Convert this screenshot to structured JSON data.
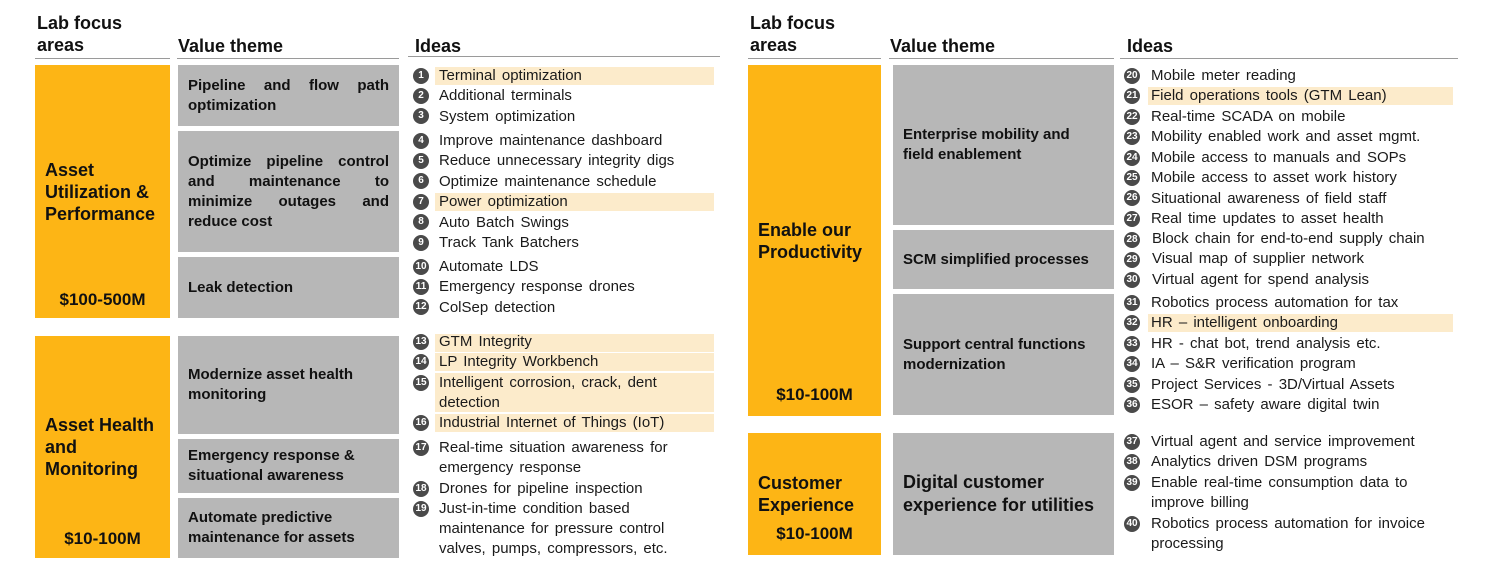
{
  "colors": {
    "focus": "#FDB515",
    "theme": "#B7B7B7",
    "highlight": "#FCEBCB",
    "number_circle": "#4a4a4a"
  },
  "headers": {
    "left": {
      "focus": "Lab focus areas",
      "theme": "Value theme",
      "ideas": "Ideas"
    },
    "right": {
      "focus": "Lab focus areas",
      "theme": "Value theme",
      "ideas": "Ideas"
    }
  },
  "focus_areas": [
    {
      "title": "Asset Utilization & Performance",
      "amount": "$100-500M"
    },
    {
      "title": "Asset Health and Monitoring",
      "amount": "$10-100M"
    },
    {
      "title": "Enable our Productivity",
      "amount": "$10-100M"
    },
    {
      "title": "Customer Experience",
      "amount": "$10-100M"
    }
  ],
  "themes": [
    "Pipeline and flow path optimization",
    "Optimize pipeline control and maintenance to minimize outages and reduce cost",
    "Leak detection",
    "Modernize asset health monitoring",
    "Emergency response & situational awareness",
    "Automate predictive maintenance for assets",
    "Enterprise mobility and field enablement",
    "SCM simplified processes",
    "Support central functions modernization",
    "Digital customer experience for utilities"
  ],
  "ideas": [
    {
      "num": "1",
      "text": "Terminal optimization",
      "highlight": true
    },
    {
      "num": "2",
      "text": "Additional terminals",
      "highlight": false
    },
    {
      "num": "3",
      "text": "System optimization",
      "highlight": false
    },
    {
      "num": "4",
      "text": "Improve maintenance dashboard",
      "highlight": false
    },
    {
      "num": "5",
      "text": "Reduce unnecessary integrity digs",
      "highlight": false
    },
    {
      "num": "6",
      "text": "Optimize maintenance schedule",
      "highlight": false
    },
    {
      "num": "7",
      "text": "Power optimization",
      "highlight": true
    },
    {
      "num": "8",
      "text": "Auto Batch Swings",
      "highlight": false
    },
    {
      "num": "9",
      "text": "Track Tank Batchers",
      "highlight": false
    },
    {
      "num": "10",
      "text": "Automate LDS",
      "highlight": false
    },
    {
      "num": "11",
      "text": "Emergency response drones",
      "highlight": false
    },
    {
      "num": "12",
      "text": "ColSep detection",
      "highlight": false
    },
    {
      "num": "13",
      "text": "GTM Integrity",
      "highlight": true
    },
    {
      "num": "14",
      "text": "LP Integrity Workbench",
      "highlight": true
    },
    {
      "num": "15",
      "text": "Intelligent corrosion, crack, dent detection",
      "highlight": true
    },
    {
      "num": "16",
      "text": "Industrial Internet of Things (IoT)",
      "highlight": true
    },
    {
      "num": "17",
      "text": "Real-time situation awareness for emergency response",
      "highlight": false
    },
    {
      "num": "18",
      "text": "Drones for pipeline inspection",
      "highlight": false
    },
    {
      "num": "19",
      "text": "Just-in-time condition based maintenance for pressure control valves, pumps, compressors, etc.",
      "highlight": false
    },
    {
      "num": "20",
      "text": "Mobile meter reading",
      "highlight": false
    },
    {
      "num": "21",
      "text": "Field operations tools (GTM Lean)",
      "highlight": true
    },
    {
      "num": "22",
      "text": "Real-time SCADA on mobile",
      "highlight": false
    },
    {
      "num": "23",
      "text": "Mobility enabled work and asset mgmt.",
      "highlight": false
    },
    {
      "num": "24",
      "text": "Mobile access to manuals and SOPs",
      "highlight": false
    },
    {
      "num": "25",
      "text": "Mobile access to asset work history",
      "highlight": false
    },
    {
      "num": "26",
      "text": "Situational awareness of field staff",
      "highlight": false
    },
    {
      "num": "27",
      "text": "Real time updates to asset health",
      "highlight": false
    },
    {
      "num": "28",
      "text": "Block chain for end-to-end supply chain",
      "highlight": false
    },
    {
      "num": "29",
      "text": "Visual map of supplier network",
      "highlight": false
    },
    {
      "num": "30",
      "text": "Virtual agent for spend analysis",
      "highlight": false
    },
    {
      "num": "31",
      "text": "Robotics process automation for tax",
      "highlight": false
    },
    {
      "num": "32",
      "text": "HR – intelligent onboarding",
      "highlight": true
    },
    {
      "num": "33",
      "text": "HR - chat bot, trend analysis etc.",
      "highlight": false
    },
    {
      "num": "34",
      "text": "IA – S&R verification program",
      "highlight": false
    },
    {
      "num": "35",
      "text": "Project Services - 3D/Virtual Assets",
      "highlight": false
    },
    {
      "num": "36",
      "text": "ESOR – safety aware digital twin",
      "highlight": false
    },
    {
      "num": "37",
      "text": "Virtual agent and service improvement",
      "highlight": false
    },
    {
      "num": "38",
      "text": "Analytics driven DSM programs",
      "highlight": false
    },
    {
      "num": "39",
      "text": "Enable real-time consumption data to improve billing",
      "highlight": false
    },
    {
      "num": "40",
      "text": "Robotics process automation for invoice processing",
      "highlight": false
    }
  ]
}
